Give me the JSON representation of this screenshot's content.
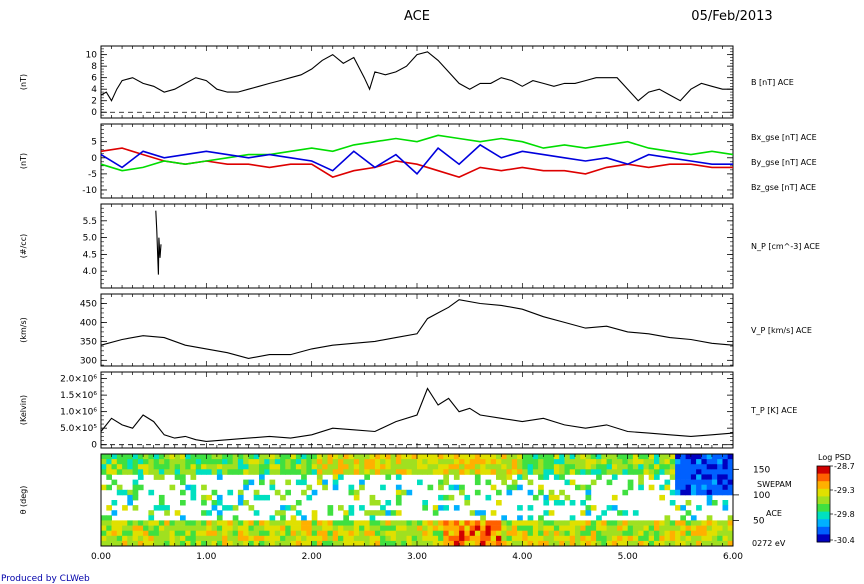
{
  "header": {
    "spacecraft": "ACE",
    "date": "05/Feb/2013"
  },
  "footer": {
    "credit": "Produced by CLWeb",
    "credit_color": "#0000aa"
  },
  "time_axis": {
    "xlim": [
      0,
      6
    ],
    "tick_labels": [
      "0.00",
      "1.00",
      "2.00",
      "3.00",
      "4.00",
      "5.00",
      "6.00"
    ]
  },
  "chart_data": [
    {
      "type": "line",
      "ylabel": "(nT)",
      "ylim": [
        -1,
        11.5
      ],
      "yticks": [
        0,
        2,
        4,
        6,
        8,
        10
      ],
      "tick_labels": [
        "0",
        "2",
        "4",
        "6",
        "8",
        "10"
      ],
      "zero_line": true,
      "series": [
        {
          "name": "B [nT] ACE",
          "color": "#000000",
          "x": [
            0,
            0.05,
            0.1,
            0.15,
            0.2,
            0.3,
            0.4,
            0.5,
            0.6,
            0.7,
            0.8,
            0.9,
            1.0,
            1.1,
            1.2,
            1.3,
            1.4,
            1.5,
            1.6,
            1.7,
            1.8,
            1.9,
            2.0,
            2.1,
            2.2,
            2.3,
            2.4,
            2.5,
            2.55,
            2.6,
            2.7,
            2.8,
            2.9,
            3.0,
            3.1,
            3.2,
            3.3,
            3.4,
            3.5,
            3.6,
            3.7,
            3.8,
            3.9,
            4.0,
            4.1,
            4.2,
            4.3,
            4.4,
            4.5,
            4.6,
            4.7,
            4.8,
            4.9,
            5.0,
            5.1,
            5.2,
            5.3,
            5.4,
            5.5,
            5.6,
            5.7,
            5.8,
            5.9,
            6.0
          ],
          "y": [
            3,
            3.5,
            2,
            4,
            5.5,
            6,
            5,
            4.5,
            3.5,
            4,
            5,
            6,
            5.5,
            4,
            3.5,
            3.5,
            4,
            4.5,
            5,
            5.5,
            6,
            6.5,
            7.5,
            9,
            10,
            8.5,
            9.5,
            6,
            4,
            7,
            6.5,
            7,
            8,
            10,
            10.5,
            9,
            7,
            5,
            4,
            5,
            5,
            6,
            5.5,
            4.5,
            5.5,
            5,
            4.5,
            5,
            5,
            5.5,
            6,
            6,
            6,
            4,
            2,
            3.5,
            4,
            3,
            2,
            4,
            5,
            4.5,
            4,
            4
          ]
        }
      ]
    },
    {
      "type": "line",
      "ylabel": "(nT)",
      "ylim": [
        -12.5,
        10.5
      ],
      "yticks": [
        -10,
        -5,
        0,
        5
      ],
      "tick_labels": [
        "-10",
        "-5",
        "0",
        "5"
      ],
      "zero_line": false,
      "series": [
        {
          "name": "Bx_gse [nT] ACE",
          "color": "#dd0000",
          "x": [
            0,
            0.2,
            0.4,
            0.6,
            0.8,
            1.0,
            1.2,
            1.4,
            1.6,
            1.8,
            2.0,
            2.2,
            2.4,
            2.6,
            2.8,
            3.0,
            3.2,
            3.4,
            3.6,
            3.8,
            4.0,
            4.2,
            4.4,
            4.6,
            4.8,
            5.0,
            5.2,
            5.4,
            5.6,
            5.8,
            6.0
          ],
          "y": [
            2,
            3,
            1,
            -1,
            -2,
            -1,
            -2,
            -2,
            -3,
            -2,
            -2,
            -6,
            -4,
            -3,
            -1,
            -2,
            -4,
            -6,
            -3,
            -4,
            -3,
            -4,
            -4,
            -5,
            -3,
            -2,
            -3,
            -2,
            -2,
            -3,
            -3
          ]
        },
        {
          "name": "By_gse [nT] ACE",
          "color": "#00dd00",
          "x": [
            0,
            0.2,
            0.4,
            0.6,
            0.8,
            1.0,
            1.2,
            1.4,
            1.6,
            1.8,
            2.0,
            2.2,
            2.4,
            2.6,
            2.8,
            3.0,
            3.2,
            3.4,
            3.6,
            3.8,
            4.0,
            4.2,
            4.4,
            4.6,
            4.8,
            5.0,
            5.2,
            5.4,
            5.6,
            5.8,
            6.0
          ],
          "y": [
            -2,
            -4,
            -3,
            -1,
            -2,
            -1,
            0,
            1,
            1,
            2,
            3,
            2,
            4,
            5,
            6,
            5,
            7,
            6,
            5,
            6,
            5,
            3,
            4,
            3,
            4,
            5,
            3,
            2,
            1,
            2,
            1
          ]
        },
        {
          "name": "Bz_gse [nT] ACE",
          "color": "#0000dd",
          "x": [
            0,
            0.2,
            0.4,
            0.6,
            0.8,
            1.0,
            1.2,
            1.4,
            1.6,
            1.8,
            2.0,
            2.2,
            2.4,
            2.6,
            2.8,
            3.0,
            3.2,
            3.4,
            3.6,
            3.8,
            4.0,
            4.2,
            4.4,
            4.6,
            4.8,
            5.0,
            5.2,
            5.4,
            5.6,
            5.8,
            6.0
          ],
          "y": [
            1,
            -3,
            2,
            0,
            1,
            2,
            1,
            0,
            1,
            0,
            -1,
            -4,
            2,
            -3,
            1,
            -5,
            3,
            -2,
            4,
            0,
            2,
            1,
            0,
            -1,
            0,
            -2,
            1,
            0,
            -1,
            -2,
            -2
          ]
        }
      ]
    },
    {
      "type": "line",
      "ylabel": "(#/cc)",
      "ylim": [
        3.5,
        6
      ],
      "yticks": [
        4,
        4.5,
        5,
        5.5
      ],
      "tick_labels": [
        "4.0",
        "4.5",
        "5.0",
        "5.5"
      ],
      "zero_line": false,
      "series": [
        {
          "name": "N_P [cm^-3] ACE",
          "color": "#000000",
          "x": [
            0.52,
            0.53,
            0.54,
            0.545,
            0.55,
            0.56,
            0.57
          ],
          "y": [
            5.8,
            5.2,
            4.3,
            3.9,
            5.0,
            4.4,
            4.8
          ]
        }
      ]
    },
    {
      "type": "line",
      "ylabel": "(km/s)",
      "ylim": [
        285,
        475
      ],
      "yticks": [
        300,
        350,
        400,
        450
      ],
      "tick_labels": [
        "300",
        "350",
        "400",
        "450"
      ],
      "zero_line": false,
      "series": [
        {
          "name": "V_P [km/s] ACE",
          "color": "#000000",
          "x": [
            0,
            0.2,
            0.4,
            0.6,
            0.8,
            1.0,
            1.2,
            1.4,
            1.6,
            1.8,
            2.0,
            2.2,
            2.4,
            2.6,
            2.8,
            3.0,
            3.1,
            3.2,
            3.3,
            3.4,
            3.6,
            3.8,
            4.0,
            4.2,
            4.4,
            4.6,
            4.8,
            5.0,
            5.2,
            5.4,
            5.6,
            5.8,
            6.0
          ],
          "y": [
            340,
            355,
            365,
            360,
            340,
            330,
            320,
            305,
            315,
            315,
            330,
            340,
            345,
            350,
            360,
            370,
            410,
            425,
            440,
            460,
            450,
            445,
            435,
            415,
            400,
            385,
            390,
            375,
            370,
            360,
            355,
            345,
            340
          ]
        }
      ]
    },
    {
      "type": "line",
      "ylabel": "(Kelvin)",
      "ylim": [
        -100000,
        2200000
      ],
      "yticks": [
        0,
        500000,
        1000000,
        1500000,
        2000000
      ],
      "tick_labels": [
        "0",
        "5.0×10⁵",
        "1.0×10⁶",
        "1.5×10⁶",
        "2.0×10⁶"
      ],
      "zero_line": true,
      "series": [
        {
          "name": "T_P [K] ACE",
          "color": "#000000",
          "x": [
            0,
            0.1,
            0.2,
            0.3,
            0.4,
            0.5,
            0.6,
            0.7,
            0.8,
            0.9,
            1.0,
            1.4,
            1.6,
            1.8,
            2.0,
            2.2,
            2.4,
            2.6,
            2.8,
            3.0,
            3.1,
            3.2,
            3.3,
            3.4,
            3.5,
            3.6,
            3.8,
            4.0,
            4.2,
            4.4,
            4.6,
            4.8,
            5.0,
            5.2,
            5.4,
            5.6,
            5.8,
            6.0
          ],
          "y": [
            400000,
            800000,
            600000,
            500000,
            900000,
            700000,
            300000,
            200000,
            250000,
            150000,
            100000,
            200000,
            250000,
            200000,
            300000,
            500000,
            450000,
            400000,
            700000,
            900000,
            1700000,
            1200000,
            1400000,
            1000000,
            1100000,
            900000,
            800000,
            700000,
            800000,
            600000,
            500000,
            600000,
            400000,
            350000,
            300000,
            250000,
            300000,
            350000
          ]
        }
      ]
    },
    {
      "type": "heatmap",
      "ylabel": "θ (deg)",
      "ylim": [
        0,
        180
      ],
      "yticks": [
        50,
        100,
        150
      ],
      "tick_labels": [
        "50",
        "100",
        "150"
      ],
      "instrument": "SWEPAM",
      "spacecraft": "ACE",
      "energy": "0272 eV",
      "colorbar": {
        "label": "Log PSD",
        "max": "-28.7",
        "mid_high": "-29.3",
        "mid_low": "-29.8",
        "min": "-30.4"
      }
    }
  ]
}
